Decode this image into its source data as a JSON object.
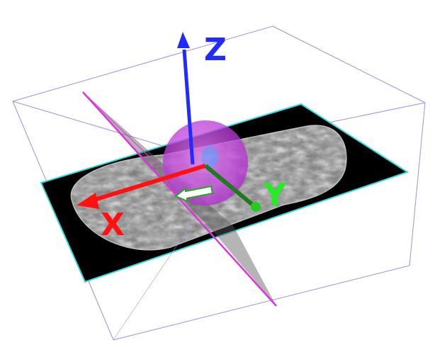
{
  "axes": {
    "x": {
      "label": "X",
      "color": "#ff1111"
    },
    "y": {
      "label": "Y",
      "color": "#22ee22"
    },
    "z": {
      "label": "Z",
      "color": "#1f2bff"
    }
  },
  "colors": {
    "bounding_box": "#9b8ef0",
    "axial_plane_border": "#33dddd",
    "oblique_plane": "#e033e0",
    "sphere": "#cc33ee",
    "probe_arrow": "#ffffff",
    "probe_arrow_outline": "#22aa22"
  }
}
